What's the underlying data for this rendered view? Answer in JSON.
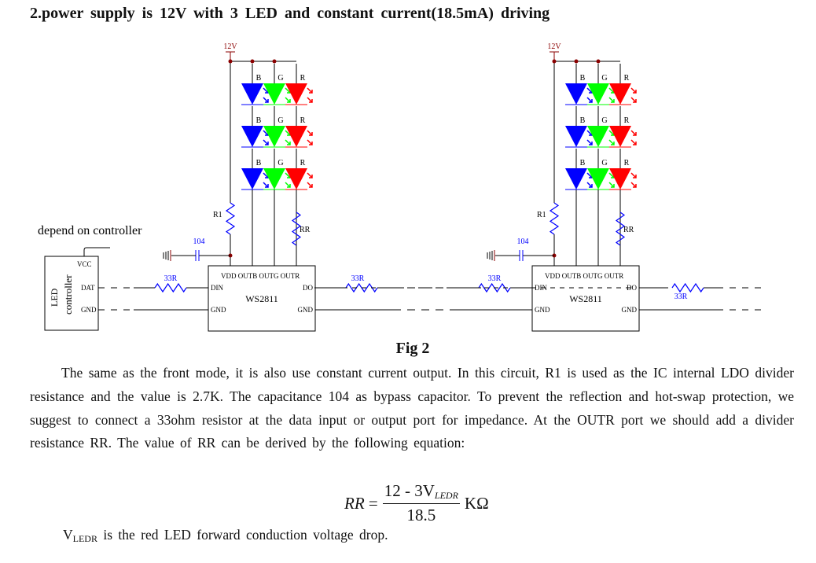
{
  "title": "2.power supply is 12V with 3 LED and constant current(18.5mA) driving",
  "diagram": {
    "supply": "12V",
    "led_labels": [
      "B",
      "G",
      "R"
    ],
    "r1": "R1",
    "rr": "RR",
    "cap": "104",
    "res": "33R",
    "ic_name": "WS2811",
    "ic_pins_top": "VDD  OUTB  OUTG  OUTR",
    "din": "DIN",
    "do": "DO",
    "gnd": "GND",
    "controller_note": "depend on controller",
    "controller_title": "LED",
    "controller_sub": "controller",
    "vcc": "VCC",
    "dat": "DAT",
    "colors": {
      "blue": "#0000ff",
      "green": "#00ff00",
      "red": "#ff0000",
      "wire": "#000000",
      "supply": "#8b0000"
    }
  },
  "figure_caption": "Fig 2",
  "paragraph": [
    "The same as the front mode, it is also use constant current output. In this circuit, R1 is used as the IC internal LDO divider resistance and the value is 2.7K. The capacitance 104 as bypass capacitor. To prevent the reflection and hot-swap protection, we suggest to connect a 33ohm resistor at the data input or output port for impedance. At the OUTR port we should add a divider resistance RR. The value of RR can be derived by the following equation:"
  ],
  "equation": {
    "lhs": "RR",
    "eq": "=",
    "numerator_a": "12 - 3V",
    "numerator_sub": "LEDR",
    "denominator": "18.5",
    "unit": "KΩ"
  },
  "footer": {
    "v": "V",
    "sub": "LEDR",
    "text": " is the red LED forward conduction voltage drop."
  }
}
